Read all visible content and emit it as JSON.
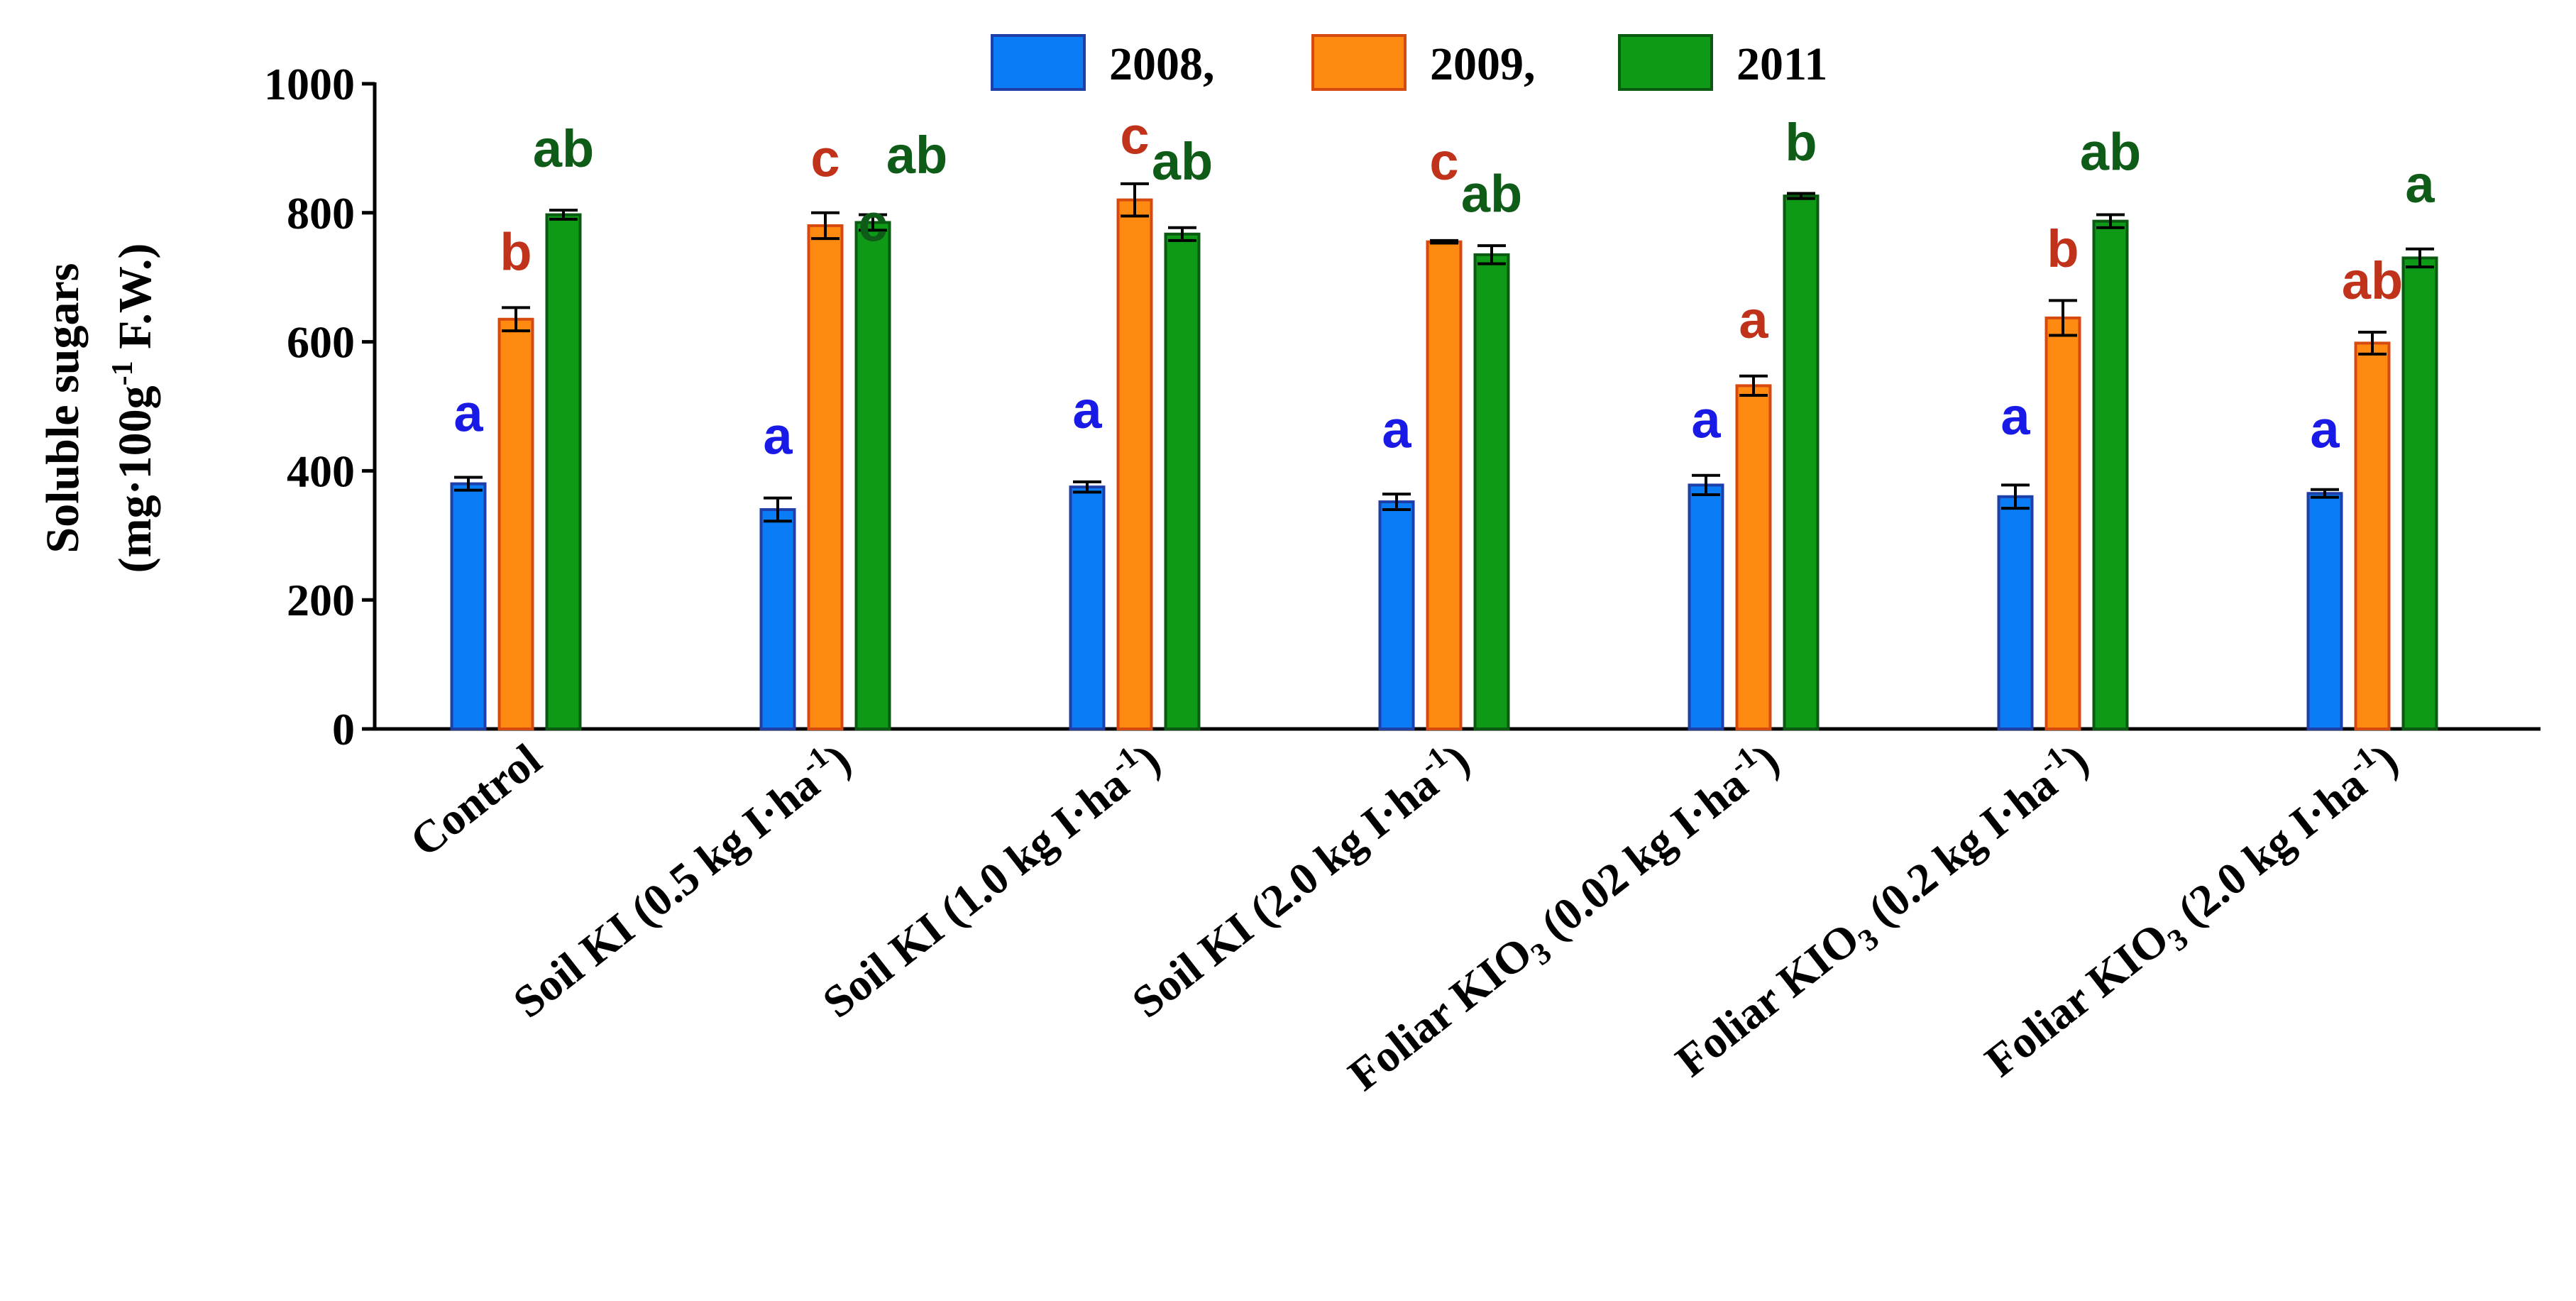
{
  "chart_data": {
    "type": "bar",
    "title": "",
    "xlabel": "",
    "ylabel_line1": "Soluble sugars",
    "ylabel_line2": {
      "prefix": "(mg·100g",
      "sup": "-1",
      "suffix": " F.W.)"
    },
    "ylim": [
      0,
      1000
    ],
    "yticks": [
      0,
      200,
      400,
      600,
      800,
      1000
    ],
    "grid": false,
    "legend_position": "top-center",
    "categories": [
      {
        "label": "Control"
      },
      {
        "label": "Soil KI (0.5 kg I·ha-1)",
        "pre": "Soil KI (0.5 kg I·ha",
        "sup": "-1",
        "post": ")"
      },
      {
        "label": "Soil KI (1.0 kg I·ha-1)",
        "pre": "Soil KI (1.0 kg I·ha",
        "sup": "-1",
        "post": ")"
      },
      {
        "label": "Soil KI (2.0 kg I·ha-1)",
        "pre": "Soil KI (2.0 kg I·ha",
        "sup": "-1",
        "post": ")"
      },
      {
        "label": "Foliar KIO3 (0.02 kg I·ha-1)",
        "pre": "Foliar KIO",
        "sub": "3",
        "mid": " (0.02 kg I·ha",
        "sup": "-1",
        "post": ")"
      },
      {
        "label": "Foliar KIO3 (0.2 kg I·ha-1)",
        "pre": "Foliar KIO",
        "sub": "3",
        "mid": " (0.2 kg I·ha",
        "sup": "-1",
        "post": ")"
      },
      {
        "label": "Foliar KIO3 (2.0 kg I·ha-1)",
        "pre": "Foliar KIO",
        "sub": "3",
        "mid": " (2.0 kg I·ha",
        "sup": "-1",
        "post": ")"
      }
    ],
    "series": [
      {
        "name": "2008,",
        "fill": "#0a7cf5",
        "stroke": "#1f3fa8",
        "text_color": "#1a1ae6",
        "values": [
          380,
          340,
          375,
          352,
          378,
          360,
          365
        ],
        "errors": [
          10,
          18,
          8,
          12,
          15,
          18,
          6
        ],
        "letters": [
          "a",
          "a",
          "a",
          "a",
          "a",
          "a",
          "a"
        ],
        "letter_values": [
          490,
          455,
          495,
          465,
          480,
          485,
          465
        ]
      },
      {
        "name": "2009,",
        "fill": "#ff8a12",
        "stroke": "#d64a10",
        "text_color": "#c0331a",
        "values": [
          635,
          780,
          820,
          755,
          532,
          637,
          598
        ],
        "errors": [
          18,
          20,
          25,
          2,
          15,
          27,
          17
        ],
        "letters": [
          "b",
          "c",
          "c",
          "c",
          "a",
          "b",
          "ab"
        ],
        "letter_values": [
          740,
          885,
          920,
          880,
          635,
          745,
          695
        ]
      },
      {
        "name": "2011",
        "fill": "#0e9a16",
        "stroke": "#0b5a12",
        "text_color": "#0f5c18",
        "values": [
          797,
          785,
          767,
          735,
          826,
          787,
          730
        ],
        "errors": [
          7,
          12,
          10,
          14,
          4,
          10,
          14
        ],
        "letters": [
          "ab",
          "c",
          "ab",
          "ab",
          "b",
          "ab",
          "a"
        ],
        "letter_values": [
          900,
          785,
          880,
          830,
          910,
          895,
          845
        ]
      }
    ],
    "extra_letters": [
      {
        "category": 1,
        "series": 2,
        "text": "ab",
        "value": 890
      }
    ]
  }
}
